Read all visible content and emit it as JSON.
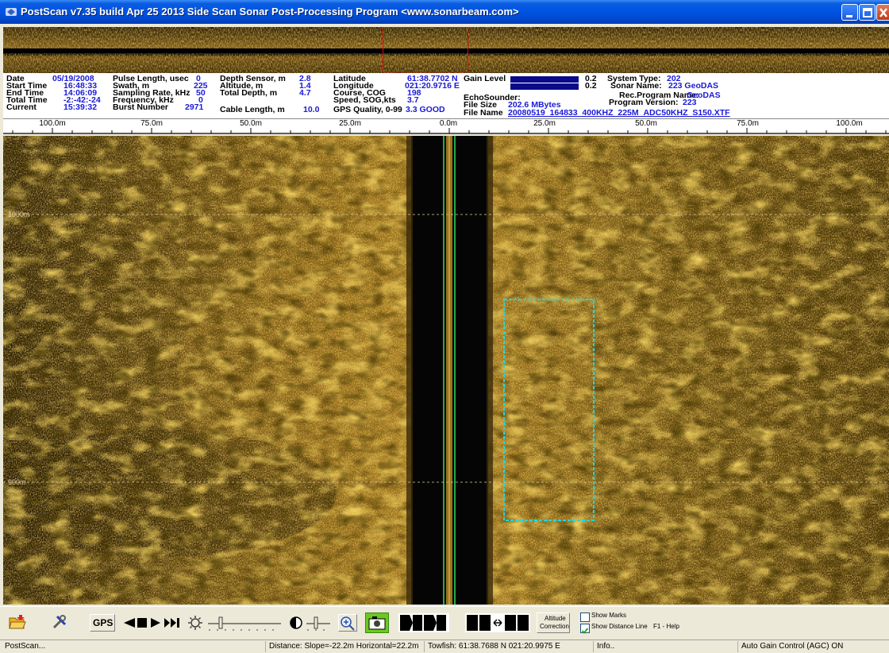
{
  "window": {
    "title": "PostScan v7.35 build Apr 25 2013  Side Scan Sonar Post-Processing Program  <www.sonarbeam.com>"
  },
  "info": {
    "date_label": "Date",
    "date": "05/19/2008",
    "start_label": "Start Time",
    "start": "16:48:33",
    "end_label": "End  Time",
    "end": "14:06:09",
    "total_label": "Total Time",
    "total": "-2:-42:-24",
    "current_label": "Current",
    "current": "15:39:32",
    "pulse_label": "Pulse Length, usec",
    "pulse": "0",
    "swath_label": "Swath, m",
    "swath": "225",
    "sampling_label": "Sampling Rate, kHz",
    "sampling": "50",
    "freq_label": "Frequency, kHz",
    "freq": "0",
    "burst_label": "Burst Number",
    "burst": "2971",
    "depth_label": "Depth Sensor, m",
    "depth": "2.8",
    "altitude_label": "Altitude, m",
    "altitude": "1.4",
    "totdepth_label": "Total Depth, m",
    "totdepth": "4.7",
    "cable_label": "Cable Length, m",
    "cable": "10.0",
    "lat_label": "Latitude",
    "lat": "61:38.7702 N",
    "lon_label": "Longitude",
    "lon": "021:20.9716 E",
    "course_label": "Course, COG",
    "course": "198",
    "speed_label": "Speed,  SOG,kts",
    "speed": "3.7",
    "gps_label": "GPS Quality, 0-99",
    "gps": "3.3 GOOD",
    "gain_label": "Gain Level",
    "gain1": "0.2",
    "gain2": "0.2",
    "echo_label": "EchoSounder:",
    "filesize_label": "File Size",
    "filesize": "202.6 MBytes",
    "filename_label": "File Name",
    "filename": "20080519_164833_400KHZ_225M_ADC50KHZ_S150.XTF",
    "systype_label": "System Type:",
    "systype": "202",
    "sonarname_label": "Sonar Name:",
    "sonarname": "223 GeoDAS",
    "recprog_label": "Rec.Program Name:",
    "recprog": "GeoDAS",
    "progver_label": "Program Version:",
    "progver": "223"
  },
  "ruler": {
    "labels": [
      "100.0m",
      "75.0m",
      "50.0m",
      "25.0m",
      "0.0m",
      "25.0m",
      "50.0m",
      "75.0m",
      "100.0m"
    ]
  },
  "sonar": {
    "range_marks": [
      "1000m",
      "900m"
    ]
  },
  "toolbar": {
    "gps_label": "GPS",
    "altitude_correction_line1": "Altitude",
    "altitude_correction_line2": "Correction",
    "show_marks_label": "Show Marks",
    "show_distance_label": "Show Distance Line",
    "help_label": "F1 - Help",
    "show_marks_checked": false,
    "show_distance_checked": true
  },
  "status": {
    "app": "PostScan...",
    "distance": "Distance: Slope=-22.2m Horizontal=22.2m",
    "towfish": "Towfish: 61:38.7688 N  021:20.9975 E",
    "info": "Info..",
    "agc": "Auto Gain Control (AGC) ON"
  },
  "colors": {
    "titlebar": "#0054e3",
    "info_value": "#1919d8",
    "sonar_gold": "#b8860b",
    "selection_box": "#20d8e0",
    "track_line": "#30e060",
    "overview_viewport": "#d01010"
  }
}
